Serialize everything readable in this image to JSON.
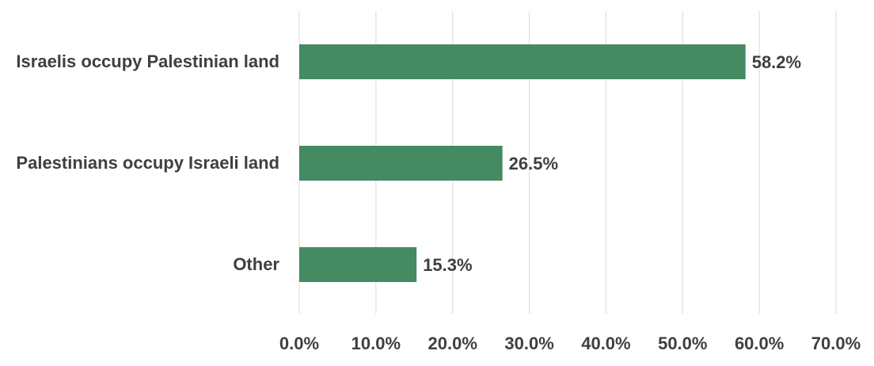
{
  "chart_data": {
    "type": "bar",
    "orientation": "horizontal",
    "title": "",
    "xlabel": "",
    "ylabel": "",
    "categories": [
      "Israelis occupy Palestinian land",
      "Palestinians occupy Israeli land",
      "Other"
    ],
    "values": [
      58.2,
      26.5,
      15.3
    ],
    "data_labels": [
      "58.2%",
      "26.5%",
      "15.3%"
    ],
    "xlim": [
      0,
      70
    ],
    "x_ticks": [
      0,
      10,
      20,
      30,
      40,
      50,
      60,
      70
    ],
    "x_tick_labels": [
      "0.0%",
      "10.0%",
      "20.0%",
      "30.0%",
      "40.0%",
      "50.0%",
      "60.0%",
      "70.0%"
    ],
    "grid": "vertical",
    "legend": "none",
    "colors": {
      "bar": "#458a63",
      "grid": "#d9d9d9",
      "text": "#3f3f3f"
    }
  }
}
